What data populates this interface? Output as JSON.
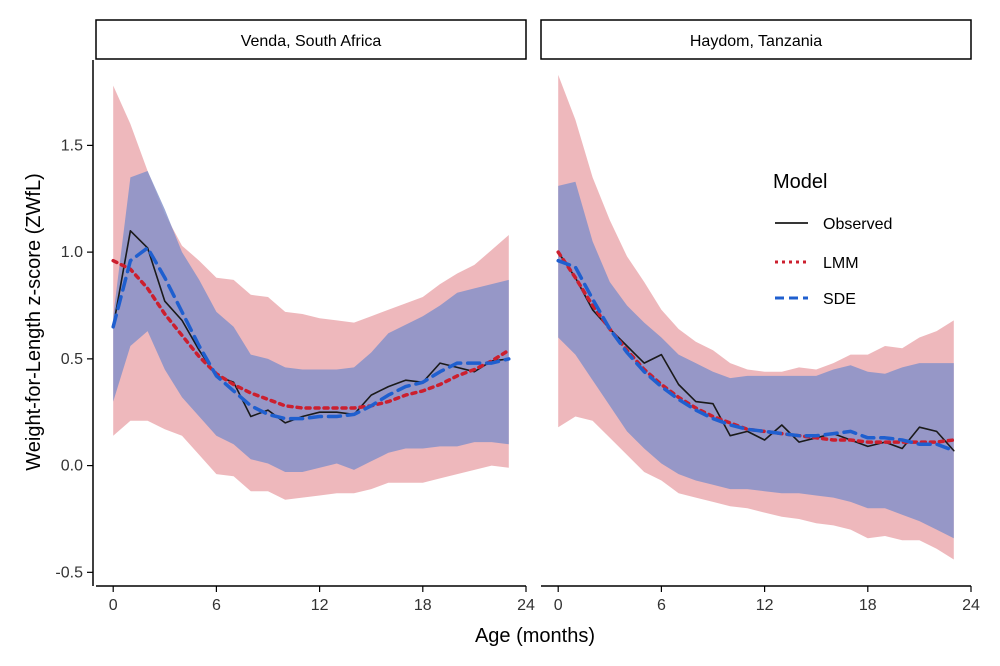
{
  "chart_data": {
    "type": "line",
    "ylabel": "Weight-for-Length z-score (ZWfL)",
    "xlabel": "Age (months)",
    "xlim": [
      -1,
      24
    ],
    "ylim": [
      -0.55,
      1.9
    ],
    "x_ticks": [
      0,
      6,
      12,
      18,
      24
    ],
    "y_ticks": [
      -0.5,
      0.0,
      0.5,
      1.0,
      1.5
    ],
    "y_tick_labels": [
      "-0.5",
      "0.0",
      "0.5",
      "1.0",
      "1.5"
    ],
    "legend": {
      "title": "Model",
      "placement": "right, inside Haydom panel",
      "entries": [
        {
          "label": "Observed",
          "color": "#1a1a1a",
          "dash": "solid"
        },
        {
          "label": "LMM",
          "color": "#cc1f2e",
          "dash": "dotted"
        },
        {
          "label": "SDE",
          "color": "#1f5fcf",
          "dash": "dashed"
        }
      ]
    },
    "band_colors": {
      "lmm": "#e8a0a6",
      "sde": "#7f8fc9"
    },
    "panels": [
      {
        "title": "Venda, South Africa",
        "x": [
          0,
          1,
          2,
          3,
          4,
          5,
          6,
          7,
          8,
          9,
          10,
          11,
          12,
          13,
          14,
          15,
          16,
          17,
          18,
          19,
          20,
          21,
          22,
          23
        ],
        "observed": [
          0.65,
          1.1,
          1.02,
          0.77,
          0.68,
          0.54,
          0.42,
          0.39,
          0.23,
          0.26,
          0.2,
          0.23,
          0.25,
          0.25,
          0.24,
          0.33,
          0.37,
          0.4,
          0.39,
          0.48,
          0.46,
          0.44,
          0.49,
          0.5
        ],
        "lmm": [
          0.96,
          0.92,
          0.83,
          0.71,
          0.61,
          0.51,
          0.43,
          0.38,
          0.34,
          0.31,
          0.28,
          0.27,
          0.27,
          0.27,
          0.27,
          0.28,
          0.3,
          0.33,
          0.35,
          0.38,
          0.42,
          0.45,
          0.49,
          0.54
        ],
        "sde": [
          0.65,
          0.96,
          1.02,
          0.88,
          0.72,
          0.56,
          0.42,
          0.35,
          0.28,
          0.24,
          0.22,
          0.22,
          0.23,
          0.23,
          0.24,
          0.28,
          0.33,
          0.37,
          0.39,
          0.44,
          0.48,
          0.48,
          0.48,
          0.5
        ],
        "lmm_lower": [
          0.14,
          0.21,
          0.21,
          0.17,
          0.14,
          0.05,
          -0.04,
          -0.05,
          -0.12,
          -0.12,
          -0.16,
          -0.15,
          -0.14,
          -0.13,
          -0.13,
          -0.11,
          -0.08,
          -0.08,
          -0.08,
          -0.06,
          -0.04,
          -0.02,
          0.0,
          -0.01
        ],
        "lmm_upper": [
          1.78,
          1.6,
          1.38,
          1.18,
          1.03,
          0.96,
          0.88,
          0.87,
          0.8,
          0.79,
          0.72,
          0.71,
          0.69,
          0.68,
          0.67,
          0.7,
          0.73,
          0.76,
          0.79,
          0.85,
          0.9,
          0.94,
          1.01,
          1.08
        ],
        "sde_lower": [
          0.3,
          0.56,
          0.63,
          0.45,
          0.32,
          0.23,
          0.14,
          0.1,
          0.03,
          0.01,
          -0.03,
          -0.03,
          -0.01,
          0.01,
          -0.02,
          0.02,
          0.06,
          0.08,
          0.08,
          0.09,
          0.09,
          0.11,
          0.11,
          0.1
        ],
        "sde_upper": [
          0.7,
          1.35,
          1.38,
          1.2,
          1.0,
          0.87,
          0.72,
          0.65,
          0.52,
          0.5,
          0.46,
          0.45,
          0.45,
          0.45,
          0.46,
          0.53,
          0.62,
          0.66,
          0.7,
          0.75,
          0.81,
          0.83,
          0.85,
          0.87
        ]
      },
      {
        "title": "Haydom, Tanzania",
        "x": [
          0,
          1,
          2,
          3,
          4,
          5,
          6,
          7,
          8,
          9,
          10,
          11,
          12,
          13,
          14,
          15,
          16,
          17,
          18,
          19,
          20,
          21,
          22,
          23
        ],
        "observed": [
          1.0,
          0.88,
          0.73,
          0.64,
          0.56,
          0.48,
          0.52,
          0.38,
          0.3,
          0.29,
          0.14,
          0.16,
          0.12,
          0.19,
          0.11,
          0.13,
          0.15,
          0.12,
          0.09,
          0.11,
          0.08,
          0.18,
          0.16,
          0.07
        ],
        "lmm": [
          1.0,
          0.88,
          0.75,
          0.64,
          0.54,
          0.45,
          0.38,
          0.32,
          0.27,
          0.23,
          0.2,
          0.17,
          0.16,
          0.15,
          0.14,
          0.13,
          0.12,
          0.12,
          0.11,
          0.11,
          0.11,
          0.11,
          0.11,
          0.12
        ],
        "sde": [
          0.96,
          0.93,
          0.78,
          0.64,
          0.53,
          0.44,
          0.37,
          0.31,
          0.26,
          0.22,
          0.19,
          0.17,
          0.16,
          0.15,
          0.14,
          0.14,
          0.15,
          0.16,
          0.13,
          0.13,
          0.12,
          0.1,
          0.1,
          0.07
        ],
        "lmm_lower": [
          0.18,
          0.23,
          0.21,
          0.13,
          0.05,
          -0.03,
          -0.07,
          -0.13,
          -0.15,
          -0.17,
          -0.19,
          -0.2,
          -0.22,
          -0.24,
          -0.25,
          -0.27,
          -0.28,
          -0.3,
          -0.34,
          -0.33,
          -0.35,
          -0.35,
          -0.39,
          -0.44
        ],
        "lmm_upper": [
          1.83,
          1.62,
          1.35,
          1.15,
          0.98,
          0.86,
          0.73,
          0.64,
          0.58,
          0.54,
          0.48,
          0.45,
          0.44,
          0.44,
          0.46,
          0.45,
          0.48,
          0.52,
          0.52,
          0.56,
          0.55,
          0.6,
          0.63,
          0.68
        ],
        "sde_lower": [
          0.6,
          0.52,
          0.4,
          0.28,
          0.16,
          0.08,
          0.01,
          -0.04,
          -0.07,
          -0.09,
          -0.11,
          -0.11,
          -0.12,
          -0.13,
          -0.13,
          -0.14,
          -0.15,
          -0.17,
          -0.2,
          -0.2,
          -0.23,
          -0.26,
          -0.3,
          -0.34
        ],
        "sde_upper": [
          1.31,
          1.33,
          1.05,
          0.86,
          0.75,
          0.67,
          0.6,
          0.52,
          0.48,
          0.44,
          0.41,
          0.42,
          0.42,
          0.42,
          0.42,
          0.42,
          0.45,
          0.47,
          0.44,
          0.43,
          0.46,
          0.48,
          0.48,
          0.48
        ]
      }
    ]
  }
}
